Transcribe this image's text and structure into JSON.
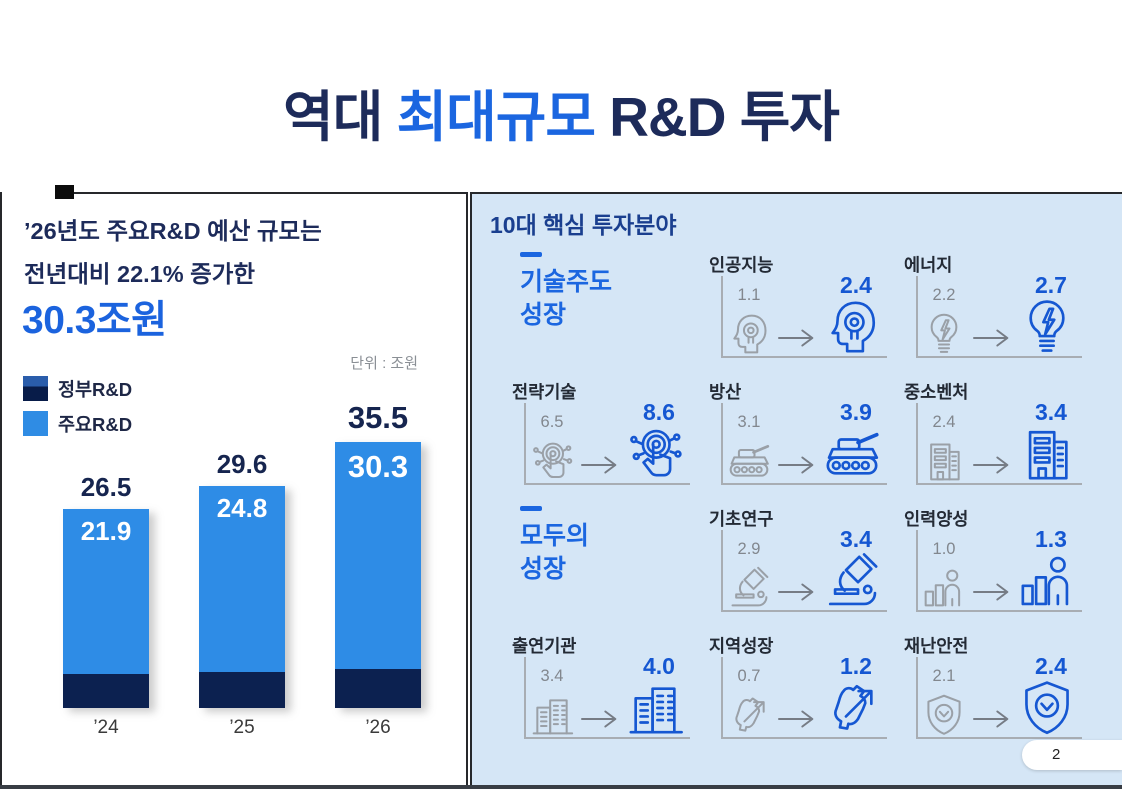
{
  "title": {
    "prefix": "역대 ",
    "highlight": "최대규모",
    "suffix": " R&D 투자"
  },
  "colors": {
    "navy": "#1d2b5a",
    "accent_blue": "#1b66e0",
    "bar_light_blue": "#2e8ce6",
    "bar_dark_navy": "#0c2150",
    "right_panel_bg": "#d5e6f6",
    "icon_gray": "#9aa0a7",
    "icon_blue": "#1557d2"
  },
  "left_panel": {
    "headline_line1": "’26년도 주요R&D 예산 규모는",
    "headline_line2": "전년대비 22.1% 증가한",
    "headline_highlight": "30.3조원",
    "unit_label": "단위 : 조원",
    "legend": [
      {
        "label": "정부R&D"
      },
      {
        "label": "주요R&D"
      }
    ]
  },
  "right_panel": {
    "header": "10대 핵심 투자분야",
    "sections": [
      {
        "line1": "기술주도",
        "line2": "성장"
      },
      {
        "line1": "모두의",
        "line2": "성장"
      }
    ],
    "items": [
      {
        "label": "인공지능",
        "from": "1.1",
        "to": "2.4",
        "icon": "ai-head-icon"
      },
      {
        "label": "에너지",
        "from": "2.2",
        "to": "2.7",
        "icon": "lightbulb-energy-icon"
      },
      {
        "label": "전략기술",
        "from": "6.5",
        "to": "8.6",
        "icon": "touch-tech-icon"
      },
      {
        "label": "방산",
        "from": "3.1",
        "to": "3.9",
        "icon": "tank-icon"
      },
      {
        "label": "중소벤처",
        "from": "2.4",
        "to": "3.4",
        "icon": "venture-building-icon"
      },
      {
        "label": "기초연구",
        "from": "2.9",
        "to": "3.4",
        "icon": "microscope-icon"
      },
      {
        "label": "인력양성",
        "from": "1.0",
        "to": "1.3",
        "icon": "talent-person-icon"
      },
      {
        "label": "출연기관",
        "from": "3.4",
        "to": "4.0",
        "icon": "institute-building-icon"
      },
      {
        "label": "지역성장",
        "from": "0.7",
        "to": "1.2",
        "icon": "korea-map-growth-icon"
      },
      {
        "label": "재난안전",
        "from": "2.1",
        "to": "2.4",
        "icon": "shield-safety-icon"
      }
    ]
  },
  "chart_data": [
    {
      "type": "bar",
      "stacked": true,
      "title": "",
      "categories": [
        "’24",
        "’25",
        "’26"
      ],
      "series": [
        {
          "name": "정부R&D",
          "values": [
            26.5,
            29.6,
            35.5
          ]
        },
        {
          "name": "주요R&D",
          "values": [
            21.9,
            24.8,
            30.3
          ]
        }
      ],
      "unit": "조원",
      "ylim": [
        0,
        40
      ],
      "grid": false,
      "legend_position": "top-left"
    },
    {
      "type": "bar",
      "title": "10대 핵심 투자분야",
      "categories": [
        "인공지능",
        "에너지",
        "전략기술",
        "방산",
        "중소벤처",
        "기초연구",
        "인력양성",
        "출연기관",
        "지역성장",
        "재난안전"
      ],
      "series": [
        {
          "name": "from",
          "values": [
            1.1,
            2.2,
            6.5,
            3.1,
            2.4,
            2.9,
            1.0,
            3.4,
            0.7,
            2.1
          ]
        },
        {
          "name": "to",
          "values": [
            2.4,
            2.7,
            8.6,
            3.9,
            3.4,
            3.4,
            1.3,
            4.0,
            1.2,
            2.4
          ]
        }
      ],
      "unit": "조원"
    }
  ],
  "footer": {
    "page_number": "2"
  }
}
